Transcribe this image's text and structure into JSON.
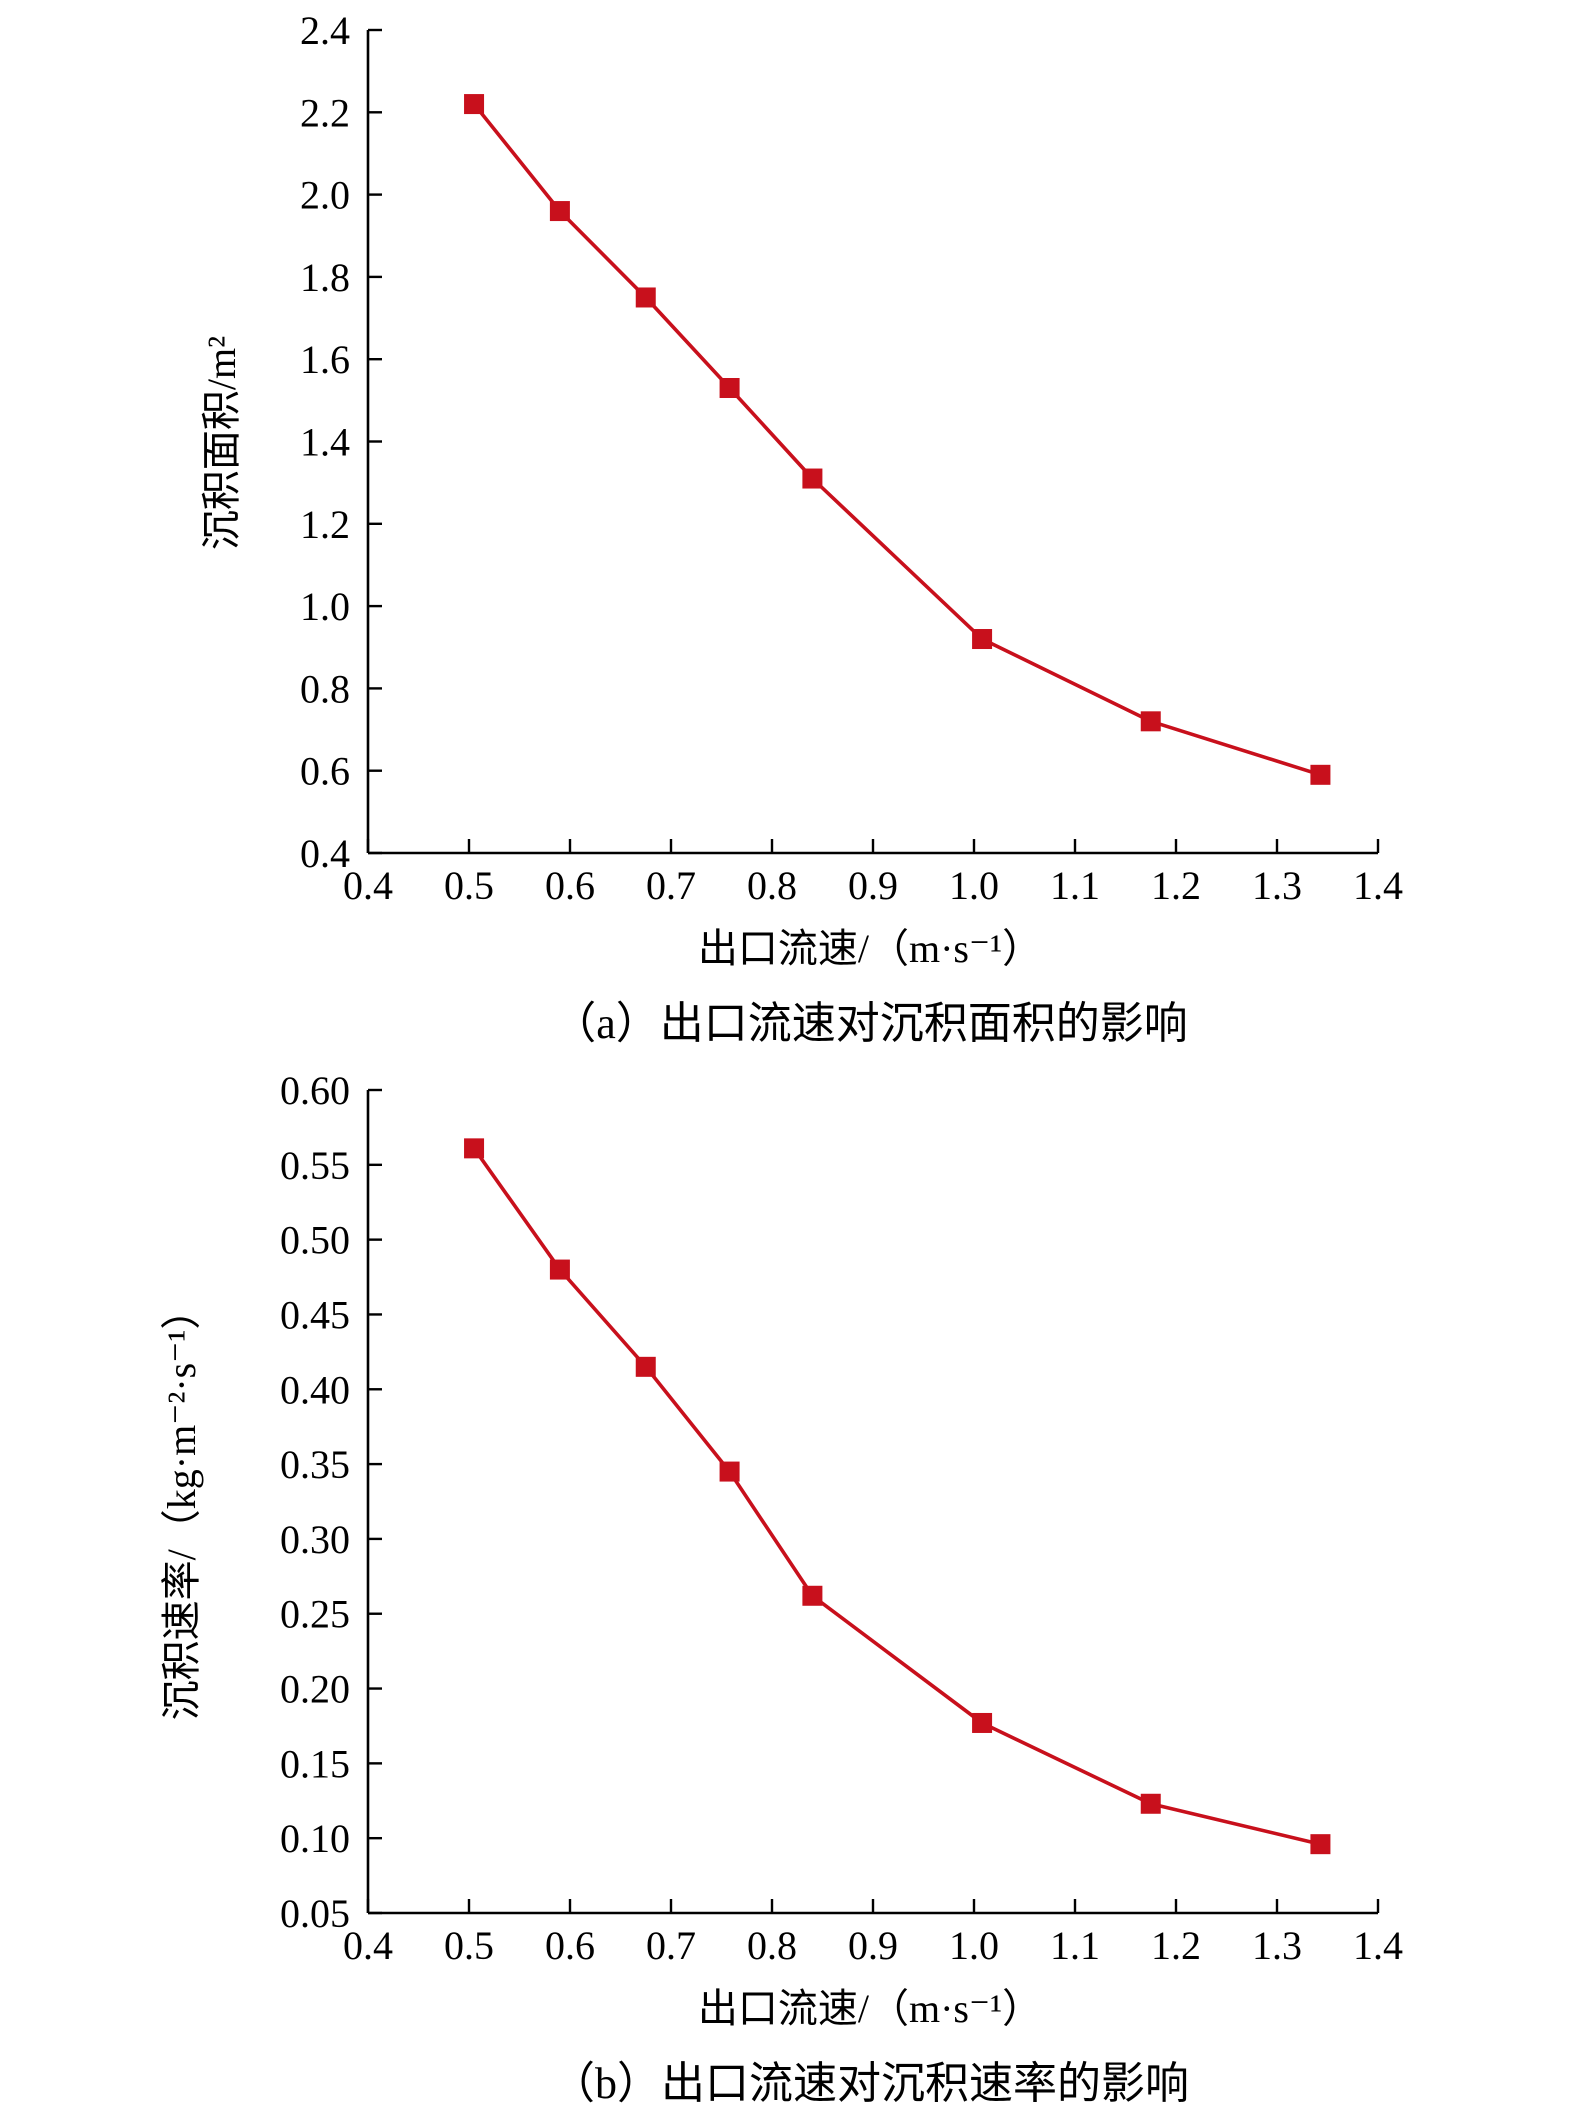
{
  "series_color": "#c8101c",
  "marker_shape": "square",
  "chart_data": [
    {
      "type": "line",
      "caption": "（a）出口流速对沉积面积的影响",
      "xlabel": "出口流速/（m·s⁻¹）",
      "ylabel": "沉积面积/m²",
      "xlim": [
        0.4,
        1.4
      ],
      "ylim": [
        0.4,
        2.4
      ],
      "xticks": [
        0.4,
        0.5,
        0.6,
        0.7,
        0.8,
        0.9,
        1.0,
        1.1,
        1.2,
        1.3,
        1.4
      ],
      "xtick_labels": [
        "0.4",
        "0.5",
        "0.6",
        "0.7",
        "0.8",
        "0.9",
        "1.0",
        "1.1",
        "1.2",
        "1.3",
        "1.4"
      ],
      "yticks": [
        0.4,
        0.6,
        0.8,
        1.0,
        1.2,
        1.4,
        1.6,
        1.8,
        2.0,
        2.2,
        2.4
      ],
      "ytick_labels": [
        "0.4",
        "0.6",
        "0.8",
        "1.0",
        "1.2",
        "1.4",
        "1.6",
        "1.8",
        "2.0",
        "2.2",
        "2.4"
      ],
      "grid": false,
      "x": [
        0.505,
        0.59,
        0.675,
        0.758,
        0.84,
        1.008,
        1.175,
        1.343
      ],
      "y": [
        2.22,
        1.96,
        1.75,
        1.53,
        1.31,
        0.92,
        0.72,
        0.59
      ]
    },
    {
      "type": "line",
      "caption": "（b）出口流速对沉积速率的影响",
      "xlabel": "出口流速/（m·s⁻¹）",
      "ylabel": "沉积速率/（kg·m⁻²·s⁻¹）",
      "xlim": [
        0.4,
        1.4
      ],
      "ylim": [
        0.05,
        0.6
      ],
      "xticks": [
        0.4,
        0.5,
        0.6,
        0.7,
        0.8,
        0.9,
        1.0,
        1.1,
        1.2,
        1.3,
        1.4
      ],
      "xtick_labels": [
        "0.4",
        "0.5",
        "0.6",
        "0.7",
        "0.8",
        "0.9",
        "1.0",
        "1.1",
        "1.2",
        "1.3",
        "1.4"
      ],
      "yticks": [
        0.05,
        0.1,
        0.15,
        0.2,
        0.25,
        0.3,
        0.35,
        0.4,
        0.45,
        0.5,
        0.55,
        0.6
      ],
      "ytick_labels": [
        "0.05",
        "0.10",
        "0.15",
        "0.20",
        "0.25",
        "0.30",
        "0.35",
        "0.40",
        "0.45",
        "0.50",
        "0.55",
        "0.60"
      ],
      "grid": false,
      "x": [
        0.505,
        0.59,
        0.675,
        0.758,
        0.84,
        1.008,
        1.175,
        1.343
      ],
      "y": [
        0.561,
        0.48,
        0.415,
        0.345,
        0.262,
        0.177,
        0.123,
        0.096
      ]
    }
  ]
}
